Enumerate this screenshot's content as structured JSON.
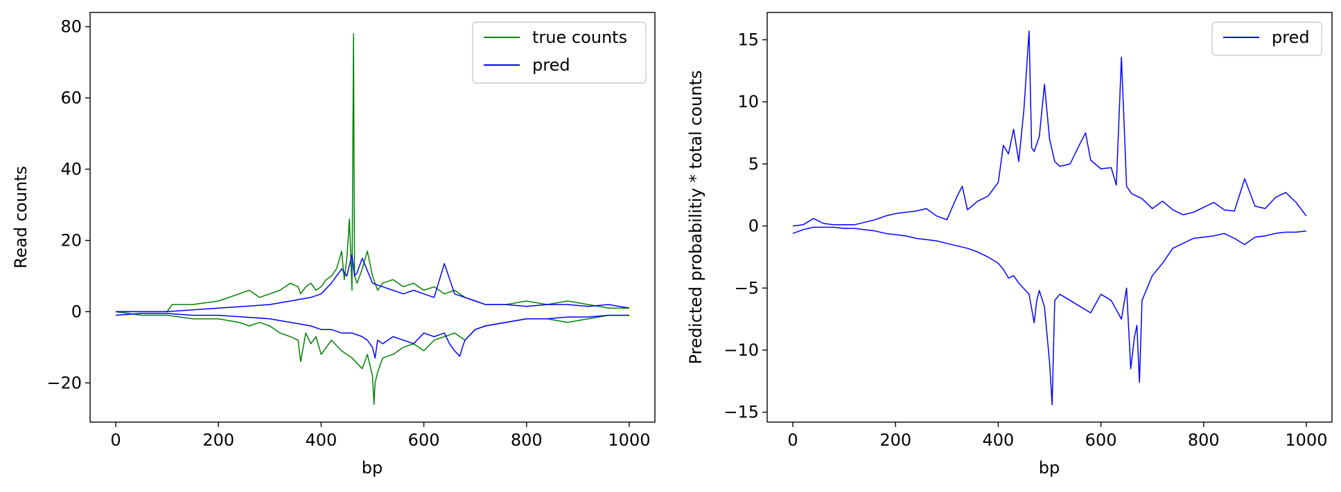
{
  "chart_data": [
    {
      "type": "line",
      "xlabel": "bp",
      "ylabel": "Read counts",
      "xlim": [
        -50,
        1050
      ],
      "ylim": [
        -31,
        84
      ],
      "xticks": [
        0,
        200,
        400,
        600,
        800,
        1000
      ],
      "yticks": [
        -20,
        0,
        20,
        40,
        60,
        80
      ],
      "legend": "top-right",
      "grid": false,
      "series": [
        {
          "name": "true counts",
          "color": "#008000",
          "strands": [
            {
              "x": [
                0,
                50,
                100,
                110,
                150,
                200,
                240,
                260,
                280,
                300,
                320,
                340,
                355,
                360,
                370,
                380,
                390,
                400,
                410,
                420,
                430,
                440,
                445,
                450,
                455,
                460,
                463,
                465,
                470,
                480,
                490,
                500,
                510,
                520,
                540,
                560,
                580,
                600,
                620,
                640,
                660,
                680,
                700,
                720,
                760,
                800,
                840,
                880,
                920,
                960,
                1000
              ],
              "y": [
                0,
                0,
                0,
                2,
                2,
                3,
                5,
                6,
                4,
                5,
                6,
                8,
                7,
                5,
                7,
                8,
                6,
                7,
                9,
                10,
                12,
                17,
                9,
                15,
                26,
                6,
                78,
                10,
                8,
                12,
                17,
                10,
                6,
                8,
                9,
                7,
                8,
                6,
                7,
                5,
                6,
                4,
                3,
                2,
                2,
                3,
                2,
                3,
                2,
                1,
                1
              ]
            },
            {
              "x": [
                0,
                50,
                100,
                150,
                200,
                240,
                260,
                280,
                300,
                320,
                340,
                355,
                360,
                370,
                380,
                390,
                400,
                420,
                440,
                460,
                480,
                490,
                500,
                503,
                505,
                510,
                520,
                540,
                560,
                580,
                600,
                620,
                640,
                660,
                680,
                700,
                720,
                760,
                800,
                840,
                880,
                920,
                960,
                1000
              ],
              "y": [
                0,
                -1,
                -1,
                -2,
                -2,
                -3,
                -4,
                -3,
                -4,
                -6,
                -7,
                -8,
                -14,
                -6,
                -9,
                -7,
                -12,
                -8,
                -11,
                -13,
                -16,
                -12,
                -18,
                -26,
                -20,
                -17,
                -13,
                -12,
                -10,
                -9,
                -11,
                -8,
                -7,
                -6,
                -8,
                -5,
                -4,
                -3,
                -2,
                -2,
                -3,
                -2,
                -1,
                -1
              ]
            }
          ]
        },
        {
          "name": "pred",
          "color": "#0000ff",
          "strands": [
            {
              "x": [
                0,
                50,
                100,
                150,
                200,
                250,
                300,
                340,
                380,
                400,
                420,
                440,
                450,
                460,
                465,
                470,
                480,
                500,
                520,
                540,
                560,
                580,
                600,
                620,
                640,
                660,
                680,
                700,
                720,
                760,
                800,
                840,
                880,
                920,
                960,
                1000
              ],
              "y": [
                0,
                0,
                0,
                0.5,
                1,
                1.5,
                2,
                3,
                4,
                5,
                8,
                12,
                10,
                16,
                10,
                11,
                15,
                8,
                7,
                6,
                5,
                6,
                5,
                4,
                13.5,
                5,
                4,
                3,
                2,
                2,
                1.5,
                2,
                2,
                1.5,
                2,
                1
              ]
            },
            {
              "x": [
                0,
                50,
                100,
                150,
                200,
                250,
                300,
                340,
                380,
                400,
                420,
                440,
                460,
                480,
                490,
                500,
                505,
                510,
                520,
                540,
                560,
                580,
                600,
                620,
                640,
                650,
                660,
                670,
                675,
                680,
                700,
                720,
                760,
                800,
                840,
                880,
                920,
                960,
                1000
              ],
              "y": [
                -1,
                -0.5,
                -0.5,
                -1,
                -1,
                -1.5,
                -2,
                -3,
                -4,
                -5,
                -5,
                -6,
                -6,
                -7,
                -8,
                -10,
                -13,
                -8,
                -9,
                -7,
                -8,
                -9,
                -6,
                -7,
                -6,
                -9,
                -11,
                -12.5,
                -10,
                -8,
                -5,
                -4,
                -3,
                -2,
                -2,
                -1.5,
                -1.5,
                -1,
                -1
              ]
            }
          ]
        }
      ]
    },
    {
      "type": "line",
      "xlabel": "bp",
      "ylabel": "Predicted probabilitiy * total counts",
      "xlim": [
        -50,
        1050
      ],
      "ylim": [
        -15.8,
        17.2
      ],
      "xticks": [
        0,
        200,
        400,
        600,
        800,
        1000
      ],
      "yticks": [
        -15,
        -10,
        -5,
        0,
        5,
        10,
        15
      ],
      "legend": "top-right",
      "grid": false,
      "series": [
        {
          "name": "pred",
          "color": "#0000ff",
          "strands": [
            {
              "x": [
                0,
                20,
                40,
                60,
                80,
                100,
                120,
                140,
                160,
                180,
                200,
                220,
                240,
                260,
                280,
                300,
                320,
                330,
                340,
                360,
                380,
                400,
                410,
                420,
                430,
                440,
                450,
                460,
                465,
                470,
                480,
                490,
                500,
                510,
                520,
                540,
                560,
                570,
                580,
                600,
                620,
                630,
                640,
                650,
                660,
                680,
                700,
                720,
                740,
                760,
                780,
                800,
                820,
                840,
                860,
                880,
                900,
                920,
                940,
                960,
                980,
                1000
              ],
              "y": [
                0,
                0.1,
                0.6,
                0.2,
                0.1,
                0.1,
                0.1,
                0.3,
                0.5,
                0.8,
                1.0,
                1.1,
                1.2,
                1.4,
                0.8,
                0.5,
                2.4,
                3.2,
                1.3,
                2.0,
                2.4,
                3.5,
                6.5,
                5.8,
                7.8,
                5.2,
                9.4,
                15.7,
                6.3,
                6.0,
                7.2,
                11.4,
                7.0,
                5.2,
                4.8,
                5.0,
                6.7,
                7.5,
                5.3,
                4.6,
                4.7,
                3.3,
                13.6,
                3.2,
                2.6,
                2.2,
                1.4,
                2.0,
                1.3,
                0.9,
                1.1,
                1.5,
                1.9,
                1.3,
                1.2,
                3.8,
                1.6,
                1.4,
                2.3,
                2.7,
                1.9,
                0.8
              ]
            },
            {
              "x": [
                0,
                20,
                40,
                60,
                80,
                100,
                120,
                140,
                160,
                180,
                200,
                220,
                240,
                260,
                280,
                300,
                320,
                340,
                360,
                380,
                400,
                410,
                420,
                430,
                440,
                460,
                470,
                475,
                480,
                490,
                500,
                505,
                510,
                520,
                540,
                560,
                580,
                600,
                620,
                640,
                650,
                658,
                665,
                670,
                675,
                680,
                700,
                720,
                740,
                760,
                780,
                800,
                820,
                840,
                860,
                880,
                900,
                920,
                940,
                960,
                980,
                1000
              ],
              "y": [
                -0.6,
                -0.3,
                -0.1,
                -0.1,
                -0.1,
                -0.2,
                -0.2,
                -0.3,
                -0.4,
                -0.6,
                -0.7,
                -0.8,
                -1.0,
                -1.1,
                -1.2,
                -1.4,
                -1.6,
                -1.8,
                -2.1,
                -2.5,
                -3.0,
                -3.5,
                -4.2,
                -4.0,
                -4.6,
                -5.5,
                -7.8,
                -6.0,
                -5.2,
                -6.5,
                -11.0,
                -14.4,
                -6.0,
                -5.5,
                -6.0,
                -6.5,
                -7.0,
                -5.5,
                -6.0,
                -7.5,
                -5.0,
                -11.5,
                -9.0,
                -8.0,
                -12.6,
                -6.0,
                -4.0,
                -3.0,
                -1.8,
                -1.4,
                -1.0,
                -0.9,
                -0.8,
                -0.6,
                -1.0,
                -1.5,
                -0.9,
                -0.8,
                -0.6,
                -0.5,
                -0.5,
                -0.4
              ]
            }
          ]
        }
      ]
    }
  ]
}
